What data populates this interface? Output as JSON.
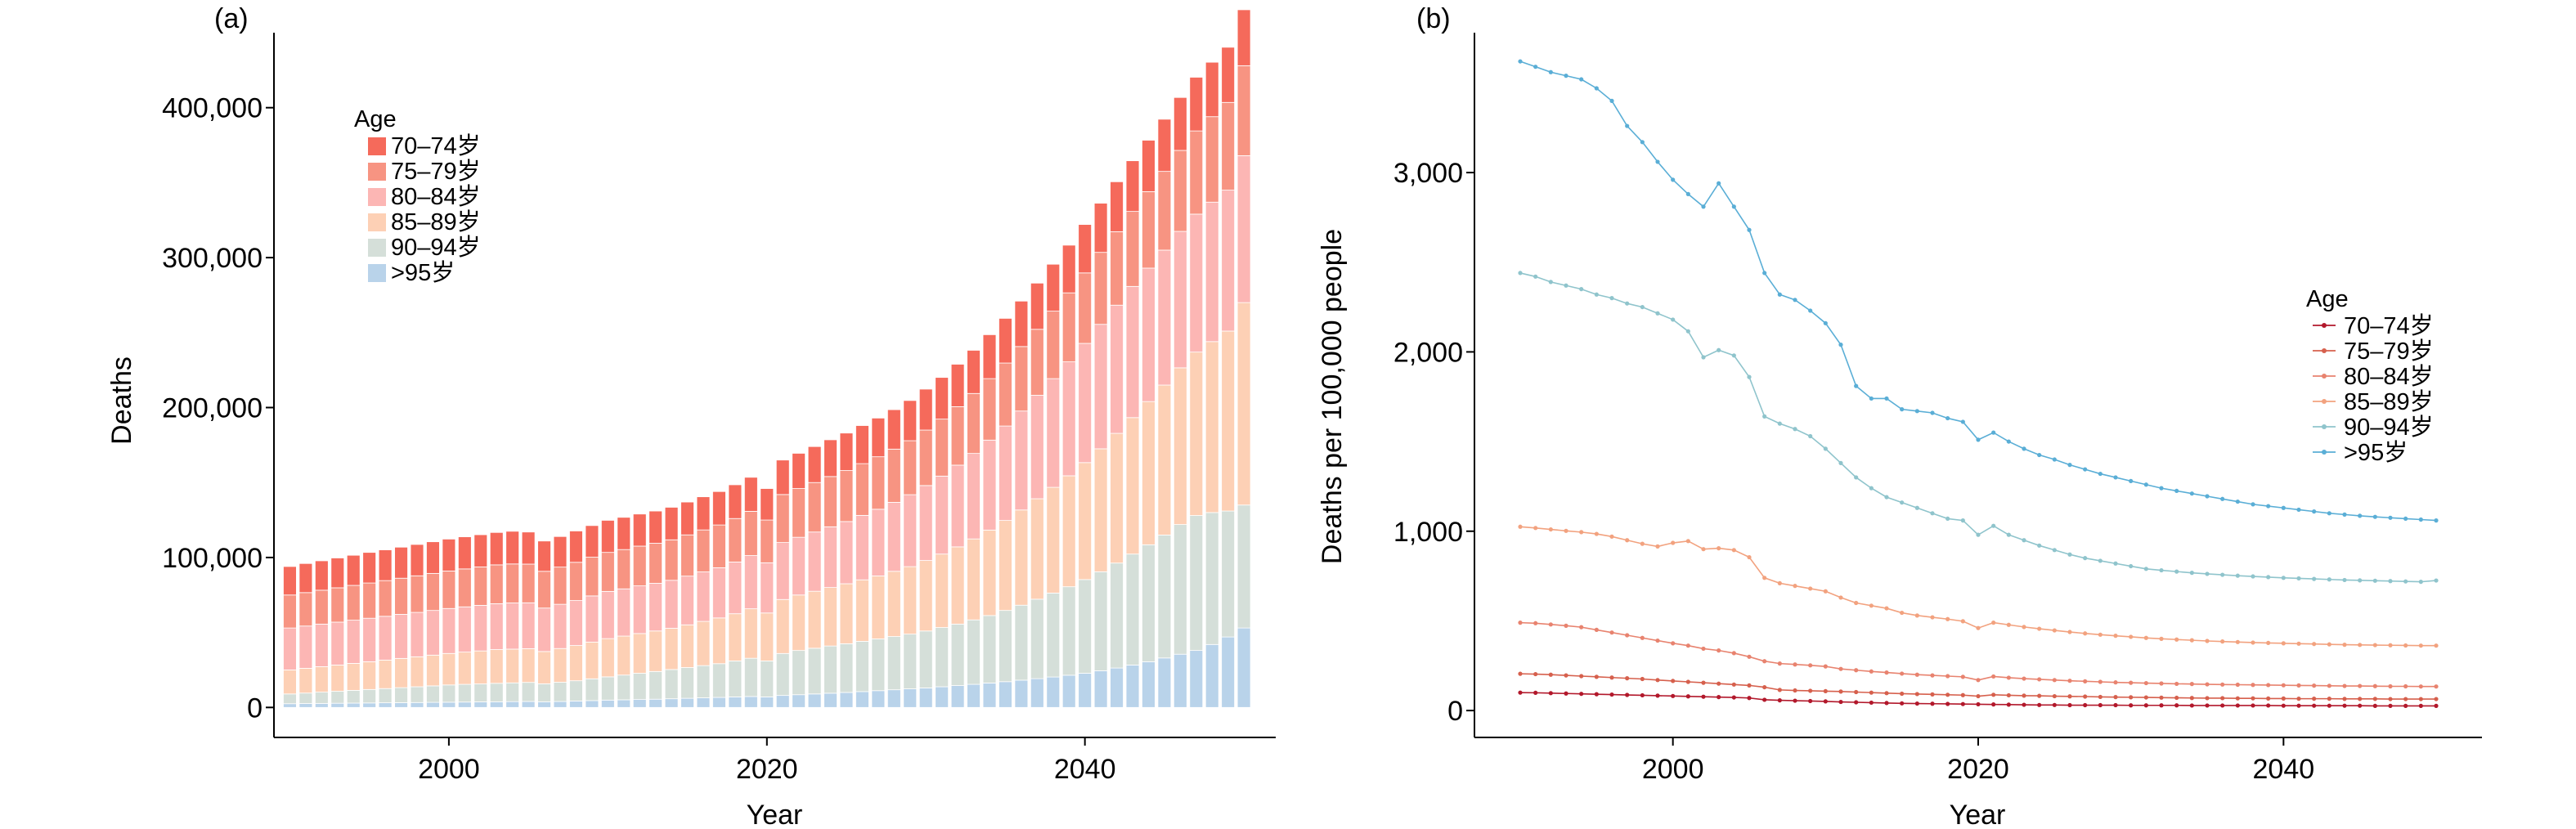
{
  "chart_data": [
    {
      "panel_label": "(a)",
      "type": "bar",
      "stacked": true,
      "xlabel": "Year",
      "ylabel": "Deaths",
      "xlim": [
        1989,
        2052
      ],
      "ylim": [
        -20000,
        450000
      ],
      "xticks": [
        2000,
        2020,
        2040
      ],
      "yticks": [
        0,
        100000,
        200000,
        300000,
        400000
      ],
      "ytick_labels": [
        "0",
        "100,000",
        "200,000",
        "300,000",
        "400,000"
      ],
      "legend": {
        "title": "Age",
        "placement": "top-left"
      },
      "x": [
        1990,
        1991,
        1992,
        1993,
        1994,
        1995,
        1996,
        1997,
        1998,
        1999,
        2000,
        2001,
        2002,
        2003,
        2004,
        2005,
        2006,
        2007,
        2008,
        2009,
        2010,
        2011,
        2012,
        2013,
        2014,
        2015,
        2016,
        2017,
        2018,
        2019,
        2020,
        2021,
        2022,
        2023,
        2024,
        2025,
        2026,
        2027,
        2028,
        2029,
        2030,
        2031,
        2032,
        2033,
        2034,
        2035,
        2036,
        2037,
        2038,
        2039,
        2040,
        2041,
        2042,
        2043,
        2044,
        2045,
        2046,
        2047,
        2048,
        2049,
        2050
      ],
      "series": [
        {
          "name": ">95岁",
          "color": "#b9d3ea",
          "values": [
            2500,
            2600,
            2700,
            2800,
            2900,
            3000,
            3100,
            3200,
            3300,
            3400,
            3500,
            3600,
            3700,
            3800,
            3900,
            4000,
            3800,
            4000,
            4300,
            4600,
            4900,
            5100,
            5300,
            5500,
            5800,
            6100,
            6400,
            6700,
            7000,
            7300,
            7000,
            8000,
            8500,
            9000,
            9500,
            10000,
            10600,
            11200,
            11800,
            12400,
            13000,
            13800,
            14600,
            15400,
            16300,
            17200,
            18200,
            19200,
            20300,
            21500,
            22800,
            24500,
            26300,
            28300,
            30500,
            33000,
            35500,
            38000,
            42000,
            47000,
            53000
          ]
        },
        {
          "name": "90–94岁",
          "color": "#d5dfd9",
          "values": [
            6500,
            7000,
            7500,
            8000,
            8500,
            9000,
            9500,
            10000,
            10500,
            11000,
            11500,
            11800,
            12000,
            12300,
            12500,
            12700,
            12000,
            12800,
            13500,
            14500,
            15500,
            16500,
            17500,
            18500,
            19500,
            20500,
            21500,
            22500,
            24000,
            25500,
            24000,
            28000,
            29500,
            30500,
            31500,
            32500,
            33500,
            34500,
            35500,
            36500,
            38000,
            39500,
            41000,
            43000,
            45000,
            47500,
            50000,
            53000,
            56000,
            59000,
            62500,
            66000,
            70000,
            74000,
            78000,
            82000,
            86500,
            90000,
            88000,
            84000,
            82000
          ]
        },
        {
          "name": "85–89岁",
          "color": "#fdd0b5",
          "values": [
            16000,
            16500,
            17000,
            17500,
            18000,
            18500,
            19000,
            19500,
            20000,
            20500,
            21000,
            21500,
            22000,
            22500,
            22500,
            22500,
            21500,
            22500,
            23500,
            24500,
            25500,
            26000,
            26500,
            27000,
            27500,
            28500,
            29500,
            30500,
            31500,
            33000,
            32000,
            36000,
            37000,
            38000,
            39000,
            40000,
            41000,
            42000,
            43500,
            45000,
            47000,
            49000,
            51500,
            54000,
            57000,
            60000,
            63500,
            67000,
            70500,
            74000,
            78000,
            82000,
            86500,
            91000,
            95500,
            100000,
            104500,
            109000,
            114000,
            120000,
            135000
          ]
        },
        {
          "name": "80–84岁",
          "color": "#fcb6b4",
          "values": [
            28000,
            28200,
            28400,
            28600,
            28800,
            29000,
            29200,
            29400,
            29600,
            29800,
            30000,
            30200,
            30400,
            30600,
            30800,
            30600,
            29000,
            29500,
            30000,
            30800,
            31500,
            31500,
            31800,
            31800,
            32000,
            32500,
            33000,
            33500,
            34500,
            35500,
            33500,
            38000,
            38500,
            39500,
            40500,
            41500,
            43000,
            44500,
            46000,
            48000,
            50000,
            52000,
            54500,
            57000,
            60000,
            63000,
            66000,
            69000,
            72500,
            76000,
            79500,
            83000,
            85500,
            87500,
            89000,
            90000,
            91000,
            92000,
            93000,
            94000,
            98000
          ]
        },
        {
          "name": "75–79岁",
          "color": "#f79482",
          "values": [
            22000,
            22300,
            22600,
            22900,
            23200,
            23500,
            23800,
            24100,
            24400,
            24700,
            25000,
            25300,
            25600,
            25900,
            26000,
            25800,
            24500,
            24800,
            25500,
            25800,
            26000,
            26200,
            26500,
            26700,
            27000,
            27500,
            28000,
            28500,
            29000,
            29500,
            28500,
            32000,
            32500,
            33000,
            33500,
            34000,
            34500,
            35000,
            35500,
            36000,
            37000,
            38000,
            39000,
            40000,
            41000,
            42000,
            43000,
            44000,
            45000,
            46000,
            47000,
            48000,
            49000,
            50000,
            51000,
            52500,
            54000,
            55500,
            57000,
            58500,
            60000
          ]
        },
        {
          "name": "70–74岁",
          "color": "#f56a5b",
          "values": [
            19000,
            19400,
            19600,
            19900,
            20100,
            20400,
            20500,
            20700,
            20900,
            21100,
            21300,
            21400,
            21500,
            21600,
            21800,
            21400,
            20200,
            20400,
            20900,
            21100,
            21400,
            21500,
            21400,
            21500,
            21700,
            21900,
            22100,
            22300,
            22500,
            22700,
            21000,
            23000,
            23500,
            24000,
            24500,
            25000,
            25400,
            25800,
            26300,
            26800,
            27300,
            27800,
            28300,
            28800,
            29300,
            29800,
            30300,
            30800,
            31300,
            31800,
            32300,
            32800,
            33300,
            33800,
            34300,
            34800,
            35300,
            35800,
            36300,
            36800,
            37300
          ]
        }
      ]
    },
    {
      "panel_label": "(b)",
      "type": "line",
      "xlabel": "Year",
      "ylabel": "Deaths per 100,000 people",
      "xlim": [
        1987,
        2053
      ],
      "ylim": [
        -150,
        3780
      ],
      "xticks": [
        2000,
        2020,
        2040
      ],
      "yticks": [
        0,
        1000,
        2000,
        3000
      ],
      "ytick_labels": [
        "0",
        "1,000",
        "2,000",
        "3,000"
      ],
      "legend": {
        "title": "Age",
        "placement": "right"
      },
      "x": [
        1990,
        1991,
        1992,
        1993,
        1994,
        1995,
        1996,
        1997,
        1998,
        1999,
        2000,
        2001,
        2002,
        2003,
        2004,
        2005,
        2006,
        2007,
        2008,
        2009,
        2010,
        2011,
        2012,
        2013,
        2014,
        2015,
        2016,
        2017,
        2018,
        2019,
        2020,
        2021,
        2022,
        2023,
        2024,
        2025,
        2026,
        2027,
        2028,
        2029,
        2030,
        2031,
        2032,
        2033,
        2034,
        2035,
        2036,
        2037,
        2038,
        2039,
        2040,
        2041,
        2042,
        2043,
        2044,
        2045,
        2046,
        2047,
        2048,
        2049,
        2050
      ],
      "series": [
        {
          "name": "70–74岁",
          "color": "#b2182b",
          "values": [
            100,
            99,
            97,
            95,
            93,
            91,
            89,
            87,
            85,
            83,
            81,
            79,
            77,
            75,
            73,
            70,
            60,
            57,
            55,
            53,
            51,
            48,
            46,
            44,
            42,
            40,
            39,
            38,
            37,
            36,
            35,
            34,
            33,
            32,
            31,
            31,
            30,
            30,
            30,
            30,
            29,
            29,
            29,
            29,
            28,
            28,
            28,
            28,
            28,
            28,
            27,
            27,
            27,
            27,
            27,
            27,
            26,
            26,
            26,
            26,
            26
          ]
        },
        {
          "name": "75–79岁",
          "color": "#d6604d",
          "values": [
            205,
            203,
            200,
            196,
            192,
            188,
            184,
            180,
            176,
            170,
            165,
            160,
            155,
            150,
            145,
            140,
            130,
            115,
            112,
            110,
            108,
            106,
            103,
            100,
            97,
            94,
            92,
            90,
            88,
            86,
            80,
            88,
            85,
            83,
            82,
            80,
            79,
            78,
            76,
            75,
            74,
            73,
            72,
            71,
            70,
            69,
            69,
            68,
            68,
            67,
            67,
            66,
            66,
            66,
            65,
            65,
            65,
            64,
            64,
            64,
            64
          ]
        },
        {
          "name": "80–84岁",
          "color": "#e8836f",
          "values": [
            490,
            487,
            480,
            473,
            465,
            450,
            435,
            420,
            405,
            390,
            375,
            362,
            345,
            335,
            320,
            300,
            275,
            262,
            257,
            252,
            246,
            232,
            225,
            218,
            212,
            206,
            200,
            196,
            192,
            188,
            170,
            190,
            183,
            178,
            174,
            170,
            166,
            163,
            160,
            157,
            155,
            153,
            151,
            149,
            148,
            146,
            145,
            144,
            143,
            142,
            141,
            140,
            139,
            138,
            137,
            137,
            136,
            135,
            135,
            134,
            134
          ]
        },
        {
          "name": "85–89岁",
          "color": "#f2a27f",
          "values": [
            1025,
            1018,
            1010,
            1002,
            995,
            985,
            970,
            950,
            930,
            915,
            935,
            945,
            900,
            905,
            895,
            855,
            740,
            710,
            695,
            680,
            665,
            630,
            600,
            585,
            570,
            545,
            530,
            520,
            510,
            498,
            460,
            490,
            478,
            466,
            456,
            447,
            438,
            430,
            423,
            417,
            411,
            405,
            400,
            396,
            392,
            388,
            385,
            382,
            379,
            377,
            375,
            373,
            371,
            369,
            367,
            366,
            365,
            364,
            363,
            362,
            362
          ]
        },
        {
          "name": "90–94岁",
          "color": "#8fc4cc",
          "values": [
            2440,
            2420,
            2390,
            2370,
            2350,
            2320,
            2300,
            2270,
            2250,
            2215,
            2180,
            2115,
            1970,
            2010,
            1980,
            1860,
            1640,
            1600,
            1570,
            1530,
            1460,
            1380,
            1300,
            1240,
            1190,
            1160,
            1130,
            1100,
            1070,
            1060,
            980,
            1030,
            980,
            950,
            920,
            895,
            870,
            850,
            835,
            820,
            805,
            790,
            782,
            775,
            768,
            762,
            757,
            752,
            748,
            744,
            740,
            737,
            734,
            731,
            728,
            726,
            724,
            722,
            720,
            718,
            725
          ]
        },
        {
          "name": ">95岁",
          "color": "#5aaed6",
          "values": [
            3620,
            3590,
            3560,
            3540,
            3520,
            3470,
            3400,
            3260,
            3170,
            3060,
            2960,
            2880,
            2810,
            2940,
            2810,
            2680,
            2440,
            2320,
            2290,
            2230,
            2160,
            2040,
            1810,
            1740,
            1740,
            1680,
            1670,
            1660,
            1630,
            1610,
            1510,
            1550,
            1500,
            1460,
            1425,
            1400,
            1370,
            1345,
            1320,
            1300,
            1280,
            1260,
            1240,
            1225,
            1210,
            1195,
            1180,
            1165,
            1150,
            1140,
            1130,
            1120,
            1110,
            1100,
            1093,
            1086,
            1080,
            1075,
            1070,
            1065,
            1060
          ]
        }
      ]
    }
  ]
}
